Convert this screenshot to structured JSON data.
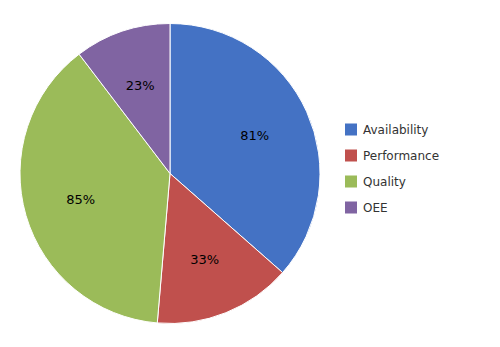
{
  "chart_data": {
    "type": "pie",
    "categories": [
      "Availability",
      "Performance",
      "Quality",
      "OEE"
    ],
    "values": [
      81,
      33,
      85,
      23
    ],
    "value_labels": [
      "81%",
      "33%",
      "85%",
      "23%"
    ],
    "colors": [
      "#4472C4",
      "#C0504D",
      "#9BBB59",
      "#8064A2"
    ],
    "data_labels": true,
    "legend": "right"
  }
}
